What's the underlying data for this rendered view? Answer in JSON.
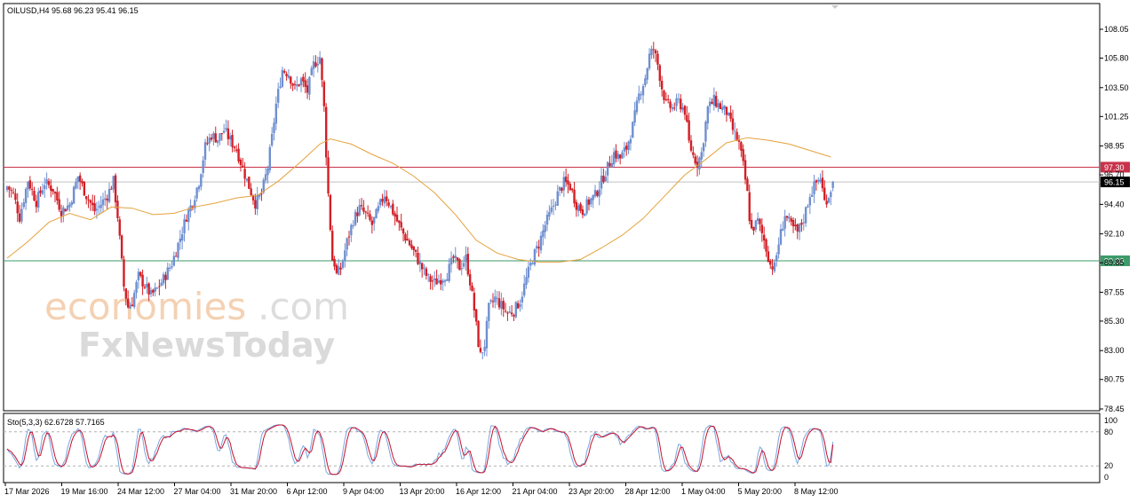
{
  "header": {
    "symbol_info": "OILUSD,H4  95.68 96.23 95.41 96.15",
    "stoch_info": "Sto(5,3,3) 62.6728 57.7165"
  },
  "watermark": {
    "line1_a": "economies",
    "line1_b": ".com",
    "line2": "FxNewsToday"
  },
  "colors": {
    "bull_candle": "#6f8fd0",
    "bear_candle": "#d21f26",
    "ma_line": "#e4a23c",
    "resistance_line": "#c8324a",
    "support_line": "#3d9a6a",
    "current_price_line": "#c0c0c0",
    "stoch_main": "#7aa6de",
    "stoch_signal": "#c8102e"
  },
  "chart_data": [
    {
      "type": "candlestick",
      "title": "OILUSD,H4",
      "timeframe": "H4",
      "last_bar": {
        "open": 95.68,
        "high": 96.23,
        "low": 95.41,
        "close": 96.15
      },
      "y_ticks": [
        "108.05",
        "105.80",
        "103.50",
        "101.25",
        "98.95",
        "96.70",
        "94.40",
        "92.10",
        "89.85",
        "87.55",
        "85.30",
        "83.00",
        "80.75",
        "78.45"
      ],
      "ylim": [
        78.45,
        108.05
      ],
      "x_ticks": [
        "17 Mar 2026",
        "19 Mar 16:00",
        "24 Mar 12:00",
        "27 Mar 04:00",
        "31 Mar 20:00",
        "6 Apr 12:00",
        "9 Apr 04:00",
        "13 Apr 20:00",
        "16 Apr 12:00",
        "21 Apr 04:00",
        "23 Apr 20:00",
        "28 Apr 12:00",
        "1 May 04:00",
        "5 May 20:00",
        "8 May 12:00"
      ],
      "horizontal_levels": [
        {
          "label": "97.30",
          "value": 97.3
        },
        {
          "label": "90.00",
          "value": 90.0
        },
        {
          "label": "96.15",
          "value": 96.15
        }
      ],
      "close_path": [
        [
          0,
          95.8
        ],
        [
          3,
          95.2
        ],
        [
          6,
          93.4
        ],
        [
          10,
          96.3
        ],
        [
          14,
          94.6
        ],
        [
          18,
          96.1
        ],
        [
          22,
          95.6
        ],
        [
          26,
          93.9
        ],
        [
          30,
          94.4
        ],
        [
          34,
          96.6
        ],
        [
          38,
          95.1
        ],
        [
          42,
          93.9
        ],
        [
          44,
          94.2
        ],
        [
          48,
          95.1
        ],
        [
          51,
          96.2
        ],
        [
          53,
          93.5
        ],
        [
          56,
          88.0
        ],
        [
          58,
          86.4
        ],
        [
          60,
          86.8
        ],
        [
          63,
          88.8
        ],
        [
          66,
          88.1
        ],
        [
          69,
          87.3
        ],
        [
          72,
          87.8
        ],
        [
          75,
          88.6
        ],
        [
          79,
          89.8
        ],
        [
          83,
          91.8
        ],
        [
          86,
          93.5
        ],
        [
          89,
          94.6
        ],
        [
          92,
          96.2
        ],
        [
          95,
          98.9
        ],
        [
          98,
          99.8
        ],
        [
          101,
          99.5
        ],
        [
          104,
          100.2
        ],
        [
          107,
          99.4
        ],
        [
          110,
          98.7
        ],
        [
          113,
          97.2
        ],
        [
          116,
          95.8
        ],
        [
          119,
          94.5
        ],
        [
          122,
          95.2
        ],
        [
          125,
          97.3
        ],
        [
          127,
          99.6
        ],
        [
          129,
          102.2
        ],
        [
          132,
          104.9
        ],
        [
          135,
          104.6
        ],
        [
          138,
          103.4
        ],
        [
          141,
          104.1
        ],
        [
          144,
          103.2
        ],
        [
          147,
          105.3
        ],
        [
          150,
          105.9
        ],
        [
          151,
          103.9
        ],
        [
          152,
          101.9
        ],
        [
          153,
          98.4
        ],
        [
          154,
          95.2
        ],
        [
          155,
          92.6
        ],
        [
          156,
          90.1
        ],
        [
          157,
          89.8
        ],
        [
          158,
          88.9
        ],
        [
          160,
          89.4
        ],
        [
          163,
          91.5
        ],
        [
          166,
          93.2
        ],
        [
          169,
          94.1
        ],
        [
          172,
          93.6
        ],
        [
          175,
          92.8
        ],
        [
          178,
          94.0
        ],
        [
          181,
          95.2
        ],
        [
          184,
          94.2
        ],
        [
          187,
          93.1
        ],
        [
          190,
          92.1
        ],
        [
          193,
          91.3
        ],
        [
          196,
          90.4
        ],
        [
          199,
          89.4
        ],
        [
          202,
          88.6
        ],
        [
          205,
          88.3
        ],
        [
          208,
          88.6
        ],
        [
          211,
          89.0
        ],
        [
          214,
          90.2
        ],
        [
          217,
          89.5
        ],
        [
          220,
          90.2
        ],
        [
          222,
          88.4
        ],
        [
          224,
          86.2
        ],
        [
          226,
          83.6
        ],
        [
          227,
          82.6
        ],
        [
          229,
          83.5
        ],
        [
          231,
          86.3
        ],
        [
          234,
          87.1
        ],
        [
          237,
          86.5
        ],
        [
          240,
          85.9
        ],
        [
          243,
          86.1
        ],
        [
          246,
          86.9
        ],
        [
          249,
          88.6
        ],
        [
          252,
          90.2
        ],
        [
          255,
          91.3
        ],
        [
          258,
          92.8
        ],
        [
          261,
          93.9
        ],
        [
          264,
          95.2
        ],
        [
          267,
          96.1
        ],
        [
          270,
          95.8
        ],
        [
          273,
          94.4
        ],
        [
          276,
          93.9
        ],
        [
          279,
          94.6
        ],
        [
          282,
          95.1
        ],
        [
          285,
          96.2
        ],
        [
          288,
          97.3
        ],
        [
          291,
          98.4
        ],
        [
          294,
          98.0
        ],
        [
          297,
          98.8
        ],
        [
          300,
          100.5
        ],
        [
          303,
          102.9
        ],
        [
          306,
          104.3
        ],
        [
          308,
          106.0
        ],
        [
          310,
          106.5
        ],
        [
          312,
          105.3
        ],
        [
          314,
          103.5
        ],
        [
          316,
          102.2
        ],
        [
          319,
          101.9
        ],
        [
          322,
          102.4
        ],
        [
          325,
          101.7
        ],
        [
          327,
          99.2
        ],
        [
          329,
          98.2
        ],
        [
          331,
          97.6
        ],
        [
          333,
          98.4
        ],
        [
          336,
          101.9
        ],
        [
          339,
          102.5
        ],
        [
          342,
          102.0
        ],
        [
          345,
          101.6
        ],
        [
          348,
          100.2
        ],
        [
          351,
          99.1
        ],
        [
          353,
          97.4
        ],
        [
          355,
          95.2
        ],
        [
          356,
          93.4
        ],
        [
          357,
          92.4
        ],
        [
          360,
          93.1
        ],
        [
          363,
          91.6
        ],
        [
          366,
          89.7
        ],
        [
          368,
          89.5
        ],
        [
          370,
          91.4
        ],
        [
          373,
          93.6
        ],
        [
          376,
          92.7
        ],
        [
          379,
          92.2
        ],
        [
          382,
          93.3
        ],
        [
          385,
          95.2
        ],
        [
          388,
          96.1
        ],
        [
          390,
          96.5
        ],
        [
          392,
          94.6
        ],
        [
          394,
          95.1
        ],
        [
          396,
          96.15
        ]
      ],
      "moving_average": [
        [
          0,
          90.2
        ],
        [
          10,
          91.5
        ],
        [
          20,
          93.0
        ],
        [
          30,
          93.7
        ],
        [
          40,
          93.2
        ],
        [
          50,
          94.2
        ],
        [
          60,
          94.1
        ],
        [
          70,
          93.6
        ],
        [
          80,
          93.7
        ],
        [
          90,
          94.2
        ],
        [
          100,
          94.5
        ],
        [
          110,
          94.9
        ],
        [
          120,
          95.1
        ],
        [
          130,
          96.2
        ],
        [
          140,
          97.6
        ],
        [
          150,
          99.1
        ],
        [
          155,
          99.5
        ],
        [
          165,
          99.1
        ],
        [
          175,
          98.3
        ],
        [
          185,
          97.6
        ],
        [
          195,
          96.6
        ],
        [
          205,
          95.3
        ],
        [
          215,
          93.6
        ],
        [
          225,
          91.6
        ],
        [
          235,
          90.6
        ],
        [
          245,
          90.1
        ],
        [
          255,
          89.9
        ],
        [
          265,
          89.9
        ],
        [
          275,
          90.1
        ],
        [
          285,
          91.0
        ],
        [
          295,
          92.0
        ],
        [
          305,
          93.3
        ],
        [
          315,
          95.0
        ],
        [
          325,
          96.7
        ],
        [
          335,
          97.9
        ],
        [
          345,
          99.2
        ],
        [
          355,
          99.6
        ],
        [
          365,
          99.4
        ],
        [
          375,
          99.1
        ],
        [
          385,
          98.6
        ],
        [
          395,
          98.1
        ]
      ]
    },
    {
      "type": "line",
      "title": "Sto(5,3,3) 62.6728 57.7165",
      "series": [
        {
          "name": "62.6728",
          "values": [],
          "last": 62.6728
        },
        {
          "name": "57.7165",
          "values": [],
          "last": 57.7165
        }
      ],
      "levels": [
        80,
        20
      ],
      "y_ticks": [
        "100",
        "80",
        "20",
        "0"
      ],
      "ylim": [
        0,
        100
      ]
    }
  ]
}
